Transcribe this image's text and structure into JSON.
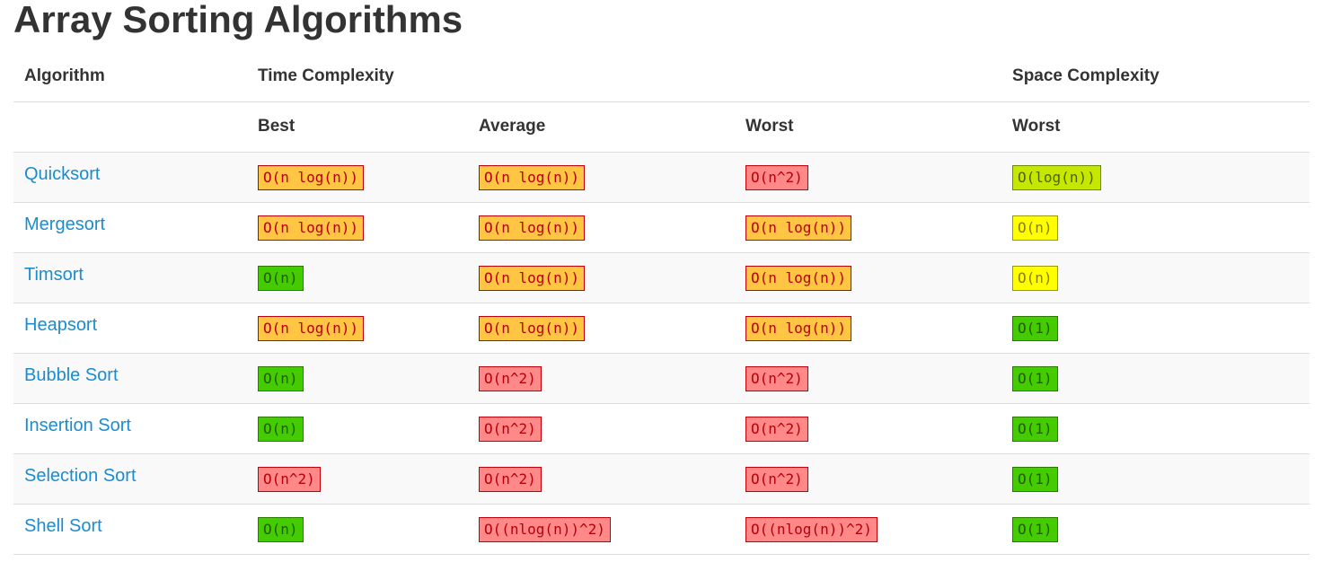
{
  "title": "Array Sorting Algorithms",
  "header": {
    "algorithm": "Algorithm",
    "time_complexity": "Time Complexity",
    "space_complexity": "Space Complexity",
    "best": "Best",
    "average": "Average",
    "worst": "Worst",
    "space_worst": "Worst"
  },
  "colors": {
    "orange": "#ffc543",
    "red": "#ff8989",
    "green": "#44cc00",
    "yellow": "#ffff00",
    "lime": "#c6e800",
    "link": "#1a8ccf"
  },
  "rows": [
    {
      "name": "Quicksort",
      "best": {
        "text": "O(n log(n))",
        "color": "orange"
      },
      "average": {
        "text": "O(n log(n))",
        "color": "orange"
      },
      "worst": {
        "text": "O(n^2)",
        "color": "red"
      },
      "space": {
        "text": "O(log(n))",
        "color": "lime"
      }
    },
    {
      "name": "Mergesort",
      "best": {
        "text": "O(n log(n))",
        "color": "orange"
      },
      "average": {
        "text": "O(n log(n))",
        "color": "orange"
      },
      "worst": {
        "text": "O(n log(n))",
        "color": "orange"
      },
      "space": {
        "text": "O(n)",
        "color": "yellow"
      }
    },
    {
      "name": "Timsort",
      "best": {
        "text": "O(n)",
        "color": "green"
      },
      "average": {
        "text": "O(n log(n))",
        "color": "orange"
      },
      "worst": {
        "text": "O(n log(n))",
        "color": "orange"
      },
      "space": {
        "text": "O(n)",
        "color": "yellow"
      }
    },
    {
      "name": "Heapsort",
      "best": {
        "text": "O(n log(n))",
        "color": "orange"
      },
      "average": {
        "text": "O(n log(n))",
        "color": "orange"
      },
      "worst": {
        "text": "O(n log(n))",
        "color": "orange"
      },
      "space": {
        "text": "O(1)",
        "color": "green"
      }
    },
    {
      "name": "Bubble Sort",
      "best": {
        "text": "O(n)",
        "color": "green"
      },
      "average": {
        "text": "O(n^2)",
        "color": "red"
      },
      "worst": {
        "text": "O(n^2)",
        "color": "red"
      },
      "space": {
        "text": "O(1)",
        "color": "green"
      }
    },
    {
      "name": "Insertion Sort",
      "best": {
        "text": "O(n)",
        "color": "green"
      },
      "average": {
        "text": "O(n^2)",
        "color": "red"
      },
      "worst": {
        "text": "O(n^2)",
        "color": "red"
      },
      "space": {
        "text": "O(1)",
        "color": "green"
      }
    },
    {
      "name": "Selection Sort",
      "best": {
        "text": "O(n^2)",
        "color": "red"
      },
      "average": {
        "text": "O(n^2)",
        "color": "red"
      },
      "worst": {
        "text": "O(n^2)",
        "color": "red"
      },
      "space": {
        "text": "O(1)",
        "color": "green"
      }
    },
    {
      "name": "Shell Sort",
      "best": {
        "text": "O(n)",
        "color": "green"
      },
      "average": {
        "text": "O((nlog(n))^2)",
        "color": "red"
      },
      "worst": {
        "text": "O((nlog(n))^2)",
        "color": "red"
      },
      "space": {
        "text": "O(1)",
        "color": "green"
      }
    }
  ]
}
